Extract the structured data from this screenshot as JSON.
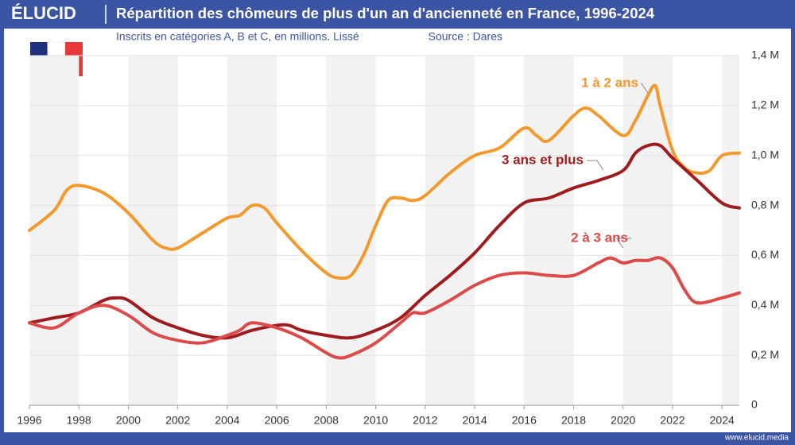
{
  "chart_data": {
    "type": "line",
    "brand": "ÉLUCID",
    "title": "Répartition des chômeurs de plus d'un an d'ancienneté en France, 1996-2024",
    "subtitle": "Inscrits en catégories A, B et C, en millions. Lissé",
    "source": "Source : Dares",
    "footer": "www.elucid.media",
    "xlim": [
      1996,
      2024.7
    ],
    "xticks": [
      1996,
      1998,
      2000,
      2002,
      2004,
      2006,
      2008,
      2010,
      2012,
      2014,
      2016,
      2018,
      2020,
      2022,
      2024
    ],
    "ylim": [
      0,
      1.4
    ],
    "yticks": [
      0,
      {
        "value": 0.2,
        "label": "0,2 M"
      },
      {
        "value": 0.4,
        "label": "0,4 M"
      },
      {
        "value": 0.6,
        "label": "0,6 M"
      },
      {
        "value": 0.8,
        "label": "0,8 M"
      },
      {
        "value": 1.0,
        "label": "1,0 M"
      },
      {
        "value": 1.2,
        "label": "1,2 M"
      },
      {
        "value": 1.4,
        "label": "1,4 M"
      }
    ],
    "grid": true,
    "series": [
      {
        "name": "1 à 2 ans",
        "color": "#f29a2e",
        "x": [
          1996,
          1997,
          1997.5,
          1998,
          1999,
          2000,
          2001,
          2001.5,
          2002,
          2003,
          2004,
          2004.5,
          2005,
          2005.5,
          2006,
          2007,
          2008,
          2008.5,
          2009,
          2009.5,
          2010,
          2010.5,
          2011,
          2011.5,
          2012,
          2013,
          2014,
          2015,
          2016,
          2016.5,
          2017,
          2018,
          2018.5,
          2019,
          2020,
          2020.5,
          2021,
          2021.3,
          2021.5,
          2022,
          2022.5,
          2023,
          2023.5,
          2024,
          2024.7
        ],
        "values": [
          0.7,
          0.78,
          0.86,
          0.88,
          0.85,
          0.77,
          0.66,
          0.63,
          0.63,
          0.69,
          0.75,
          0.76,
          0.8,
          0.79,
          0.73,
          0.62,
          0.53,
          0.51,
          0.52,
          0.6,
          0.72,
          0.82,
          0.83,
          0.82,
          0.84,
          0.93,
          1.0,
          1.03,
          1.11,
          1.08,
          1.06,
          1.16,
          1.19,
          1.16,
          1.08,
          1.14,
          1.24,
          1.28,
          1.2,
          1.02,
          0.95,
          0.93,
          0.94,
          1.0,
          1.01
        ]
      },
      {
        "name": "3 ans et plus",
        "color": "#9e1b1e",
        "x": [
          1996,
          1997,
          1998,
          1999,
          1999.5,
          2000,
          2001,
          2002,
          2003,
          2004,
          2005,
          2006,
          2006.5,
          2007,
          2008,
          2009,
          2010,
          2011,
          2012,
          2013,
          2014,
          2015,
          2016,
          2017,
          2018,
          2019,
          2020,
          2020.5,
          2021,
          2021.5,
          2022,
          2023,
          2024,
          2024.7
        ],
        "values": [
          0.33,
          0.35,
          0.37,
          0.42,
          0.43,
          0.42,
          0.35,
          0.31,
          0.28,
          0.27,
          0.3,
          0.32,
          0.32,
          0.3,
          0.28,
          0.27,
          0.3,
          0.35,
          0.44,
          0.52,
          0.61,
          0.72,
          0.81,
          0.83,
          0.87,
          0.9,
          0.94,
          1.01,
          1.04,
          1.04,
          0.99,
          0.9,
          0.81,
          0.79
        ]
      },
      {
        "name": "2 à 3 ans",
        "color": "#dc4a4a",
        "x": [
          1996,
          1997,
          1998,
          1999,
          2000,
          2001,
          2002,
          2003,
          2004,
          2004.5,
          2005,
          2006,
          2007,
          2008,
          2008.5,
          2009,
          2010,
          2011,
          2011.5,
          2012,
          2013,
          2014,
          2015,
          2016,
          2017,
          2018,
          2019,
          2019.5,
          2020,
          2020.5,
          2021,
          2021.5,
          2022,
          2022.5,
          2023,
          2024,
          2024.7
        ],
        "values": [
          0.33,
          0.31,
          0.37,
          0.4,
          0.36,
          0.29,
          0.26,
          0.25,
          0.28,
          0.3,
          0.33,
          0.31,
          0.27,
          0.21,
          0.19,
          0.2,
          0.25,
          0.33,
          0.37,
          0.37,
          0.42,
          0.48,
          0.52,
          0.53,
          0.52,
          0.52,
          0.57,
          0.59,
          0.57,
          0.58,
          0.58,
          0.59,
          0.55,
          0.46,
          0.41,
          0.43,
          0.45
        ]
      }
    ]
  }
}
